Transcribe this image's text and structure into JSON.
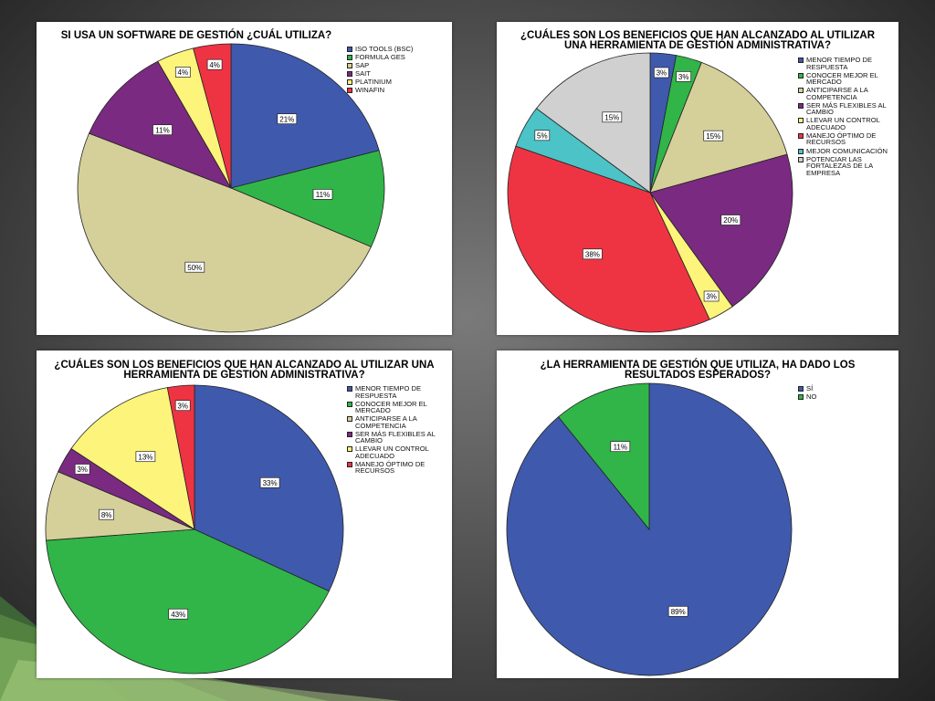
{
  "chart_data": [
    {
      "type": "pie",
      "title": "SI USA UN SOFTWARE DE GESTIÓN ¿CUÁL UTILIZA?",
      "categories": [
        "ISO TOOLS (BSC)",
        "FORMULA GES",
        "SAP",
        "SAIT",
        "PLATINIUM",
        "WINAFIN"
      ],
      "values": [
        21,
        11,
        50,
        11,
        4,
        4
      ],
      "colors": [
        "#3f59ad",
        "#31b548",
        "#d5cf9a",
        "#7a2a80",
        "#fcf47b",
        "#ee3443"
      ],
      "data_labels": [
        "21%",
        "11%",
        "50%",
        "11%",
        "4%",
        "4%"
      ],
      "legend_position": "top-right"
    },
    {
      "type": "pie",
      "title": "¿CUÁLES SON LOS BENEFICIOS QUE HAN ALCANZADO AL UTILIZAR UNA HERRAMIENTA DE GESTIÓN ADMINISTRATIVA?",
      "categories": [
        "MENOR TIEMPO DE RESPUESTA",
        "CONOCER MEJOR EL MERCADO",
        "ANTICIPARSE A LA COMPETENCIA",
        "SER MÁS FLEXIBLES AL CAMBIO",
        "LLEVAR UN CONTROL ADECUADO",
        "MANEJO ÓPTIMO DE RECURSOS",
        "MEJOR COMUNICACIÓN",
        "POTENCIAR LAS FORTALEZAS DE LA EMPRESA"
      ],
      "values": [
        3,
        3,
        15,
        20,
        3,
        38,
        5,
        15
      ],
      "colors": [
        "#3f59ad",
        "#31b548",
        "#d5cf9a",
        "#7a2a80",
        "#fcf47b",
        "#ee3443",
        "#4cc3c6",
        "#d0d0d0"
      ],
      "data_labels": [
        "3%",
        "3%",
        "15%",
        "20%",
        "3%",
        "38%",
        "5%",
        "15%"
      ],
      "legend_position": "top-right"
    },
    {
      "type": "pie",
      "title": "¿CUÁLES SON LOS BENEFICIOS QUE HAN ALCANZADO AL UTILIZAR UNA HERRAMIENTA DE GESTIÓN ADMINISTRATIVA?",
      "categories": [
        "MENOR TIEMPO DE RESPUESTA",
        "CONOCER MEJOR EL MERCADO",
        "ANTICIPARSE A LA COMPETENCIA",
        "SER MÁS FLEXIBLES AL CAMBIO",
        "LLEVAR UN CONTROL ADECUADO",
        "MANEJO ÓPTIMO DE RECURSOS"
      ],
      "values": [
        33,
        43,
        8,
        3,
        13,
        3
      ],
      "colors": [
        "#3f59ad",
        "#31b548",
        "#d5cf9a",
        "#7a2a80",
        "#fcf47b",
        "#ee3443"
      ],
      "data_labels": [
        "33%",
        "43%",
        "8%",
        "3%",
        "13%",
        "3%"
      ],
      "legend_position": "top-right"
    },
    {
      "type": "pie",
      "title": "¿LA HERRAMIENTA DE GESTIÓN QUE UTILIZA, HA DADO LOS RESULTADOS ESPERADOS?",
      "categories": [
        "SÍ",
        "NO"
      ],
      "values": [
        89,
        11
      ],
      "colors": [
        "#3f59ad",
        "#31b548"
      ],
      "data_labels": [
        "89%",
        "11%"
      ],
      "legend_position": "top-right"
    }
  ]
}
